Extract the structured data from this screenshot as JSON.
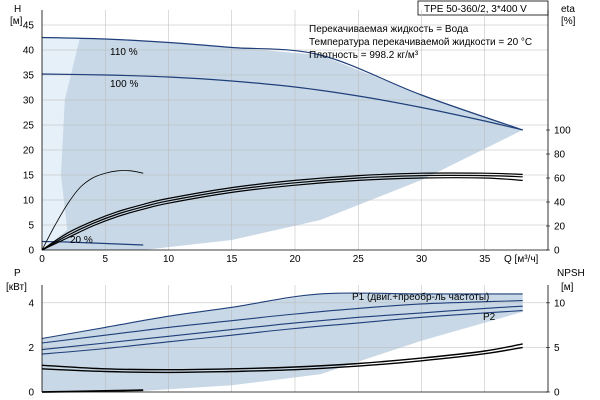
{
  "header": {
    "title": "TPE 50-360/2, 3*400 V"
  },
  "info": {
    "line1": "Перекачиваемая жидкость = Вода",
    "line2": "Температура перекачиваемой жидкости = 20 °C",
    "line3": "Плотность = 998.2 кг/м³"
  },
  "axes": {
    "h_label": "H",
    "h_unit": "[м]",
    "eta_label": "eta",
    "eta_unit": "[%]",
    "q_label": "Q [м³/ч]",
    "p_label": "P",
    "p_unit": "[кВт]",
    "npsh_label": "NPSH",
    "npsh_unit": "[м]"
  },
  "labels": {
    "speed_110": "110 %",
    "speed_100": "100 %",
    "speed_20": "20 %",
    "p1": "P1 (двиг.+преобр-ль частоты)",
    "p2": "P2"
  },
  "colors": {
    "curve": "#1f3f7a",
    "area": "#c8d8e6",
    "area_light": "#e6f0f8",
    "eta": "#000000",
    "grid": "#b8b8b8"
  },
  "chart_data": [
    {
      "type": "line",
      "title": "",
      "x_label": "Q [м³/ч]",
      "y_label": "H [м]",
      "y2_label": "eta [%]",
      "x_ticks": [
        0,
        5,
        10,
        15,
        20,
        25,
        30,
        35
      ],
      "y_ticks": [
        0,
        5,
        10,
        15,
        20,
        25,
        30,
        35,
        40,
        45
      ],
      "y2_ticks": [
        0,
        20,
        40,
        60,
        80,
        100
      ],
      "xlim": [
        0,
        40
      ],
      "ylim": [
        0,
        48
      ],
      "y2lim": [
        0,
        100
      ],
      "grid": true,
      "series": [
        {
          "name": "110 %",
          "axis": "H",
          "x": [
            0,
            5,
            10,
            15,
            22,
            30,
            38
          ],
          "y": [
            42.5,
            42.2,
            41.5,
            40.5,
            39.0,
            31.0,
            24.0
          ]
        },
        {
          "name": "100 %",
          "axis": "H",
          "x": [
            0,
            5,
            10,
            15,
            20,
            25,
            30,
            35,
            38
          ],
          "y": [
            35.2,
            35.0,
            34.6,
            33.8,
            32.6,
            30.8,
            28.5,
            25.8,
            24.0
          ]
        },
        {
          "name": "20 %",
          "axis": "H",
          "x": [
            0,
            2,
            4,
            6,
            8
          ],
          "y": [
            1.7,
            1.6,
            1.4,
            1.2,
            1.0
          ]
        },
        {
          "name": "",
          "axis": "eta",
          "x": [
            0,
            2,
            4,
            6,
            8,
            10,
            15,
            20,
            25,
            30,
            35,
            38
          ],
          "y": [
            0,
            14,
            24,
            32,
            38,
            43,
            52,
            58,
            62,
            64,
            64,
            63
          ]
        },
        {
          "name": "",
          "axis": "eta",
          "x": [
            0,
            2,
            4,
            6,
            8,
            10,
            15,
            20,
            25,
            30,
            35,
            38
          ],
          "y": [
            0,
            12,
            22,
            30,
            36,
            41,
            50,
            56,
            60,
            62,
            62,
            61
          ]
        },
        {
          "name": "",
          "axis": "eta",
          "x": [
            0,
            2,
            4,
            6,
            8,
            10,
            15,
            20,
            25,
            30,
            35,
            38
          ],
          "y": [
            0,
            10,
            20,
            28,
            34,
            39,
            48,
            54,
            58,
            60,
            60,
            58
          ]
        },
        {
          "name": "",
          "axis": "eta",
          "x": [
            0,
            1,
            2,
            3,
            4,
            5,
            6,
            7,
            8
          ],
          "y": [
            0,
            20,
            38,
            52,
            60,
            64,
            66,
            66,
            64
          ]
        }
      ]
    },
    {
      "type": "line",
      "title": "",
      "x_label": "",
      "y_label": "P [кВт]",
      "y2_label": "NPSH [м]",
      "y_ticks": [
        0,
        2,
        4
      ],
      "y2_ticks": [
        0,
        5,
        10
      ],
      "xlim": [
        0,
        40
      ],
      "ylim": [
        0,
        4.8
      ],
      "y2lim": [
        0,
        12
      ],
      "grid": true,
      "series": [
        {
          "name": "P1 (двиг.+преобр-ль частоты)",
          "axis": "P",
          "x": [
            0,
            5,
            10,
            15,
            22,
            30,
            38
          ],
          "y": [
            2.4,
            2.9,
            3.4,
            3.8,
            4.4,
            4.4,
            4.4
          ]
        },
        {
          "name": "",
          "axis": "P",
          "x": [
            0,
            5,
            10,
            15,
            20,
            25,
            30,
            35,
            38
          ],
          "y": [
            2.2,
            2.55,
            2.9,
            3.2,
            3.5,
            3.75,
            3.95,
            4.05,
            4.1
          ]
        },
        {
          "name": "",
          "axis": "P",
          "x": [
            0,
            5,
            10,
            15,
            20,
            25,
            30,
            35,
            38
          ],
          "y": [
            1.9,
            2.2,
            2.5,
            2.8,
            3.1,
            3.35,
            3.55,
            3.75,
            3.85
          ]
        },
        {
          "name": "P2",
          "axis": "P",
          "x": [
            0,
            5,
            10,
            15,
            20,
            25,
            30,
            35,
            38
          ],
          "y": [
            1.7,
            1.95,
            2.25,
            2.55,
            2.85,
            3.1,
            3.35,
            3.55,
            3.65
          ]
        },
        {
          "name": "",
          "axis": "NPSH",
          "x": [
            0,
            5,
            10,
            15,
            20,
            25,
            30,
            35,
            38
          ],
          "y": [
            3.0,
            2.6,
            2.5,
            2.6,
            2.8,
            3.2,
            3.8,
            4.6,
            5.4
          ]
        },
        {
          "name": "",
          "axis": "NPSH",
          "x": [
            0,
            5,
            10,
            15,
            20,
            25,
            30,
            35,
            38
          ],
          "y": [
            2.6,
            2.3,
            2.2,
            2.3,
            2.5,
            2.9,
            3.5,
            4.3,
            5.0
          ]
        },
        {
          "name": "",
          "axis": "P",
          "x": [
            0,
            2,
            4,
            6,
            8
          ],
          "y": [
            0.0,
            0.02,
            0.04,
            0.06,
            0.08
          ]
        }
      ]
    }
  ]
}
